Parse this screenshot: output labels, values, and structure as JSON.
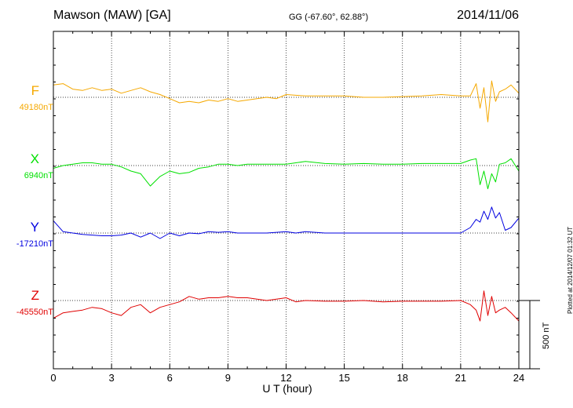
{
  "header": {
    "title": "Mawson (MAW)  [GA]",
    "coords": "GG (-67.60°,  62.88°)",
    "date": "2014/11/06"
  },
  "footer": {
    "plotted": "Plotted at 2014/12/07 01:32 UT",
    "scale": "500 nT"
  },
  "chart_data": {
    "type": "line",
    "xlabel": "U T (hour)",
    "xlim": [
      0,
      24
    ],
    "xticks": [
      0,
      3,
      6,
      9,
      12,
      15,
      18,
      21,
      24
    ],
    "xtick_labels": [
      "0",
      "3",
      "6",
      "9",
      "12",
      "15",
      "18",
      "21",
      "24"
    ],
    "grid": true,
    "scale_bar_nT": 500,
    "series": [
      {
        "name": "F",
        "baseline_label": "49180nT",
        "baseline": 49180,
        "color": "#f5a800",
        "x": [
          0,
          0.5,
          1,
          1.5,
          2,
          2.5,
          3,
          3.5,
          4,
          4.5,
          5,
          5.5,
          6,
          6.5,
          7,
          7.5,
          8,
          8.5,
          9,
          9.5,
          10,
          10.5,
          11,
          11.5,
          12,
          13,
          14,
          15,
          16,
          17,
          18,
          19,
          20,
          21,
          21.5,
          21.8,
          22,
          22.2,
          22.4,
          22.6,
          22.8,
          23,
          23.3,
          23.6,
          24
        ],
        "y": [
          49270,
          49280,
          49240,
          49230,
          49250,
          49230,
          49240,
          49210,
          49230,
          49250,
          49220,
          49200,
          49170,
          49140,
          49150,
          49140,
          49160,
          49150,
          49170,
          49150,
          49160,
          49170,
          49180,
          49170,
          49200,
          49190,
          49190,
          49190,
          49180,
          49180,
          49185,
          49190,
          49200,
          49190,
          49190,
          49280,
          49100,
          49250,
          49000,
          49300,
          49150,
          49220,
          49240,
          49270,
          49210
        ]
      },
      {
        "name": "X",
        "baseline_label": "6940nT",
        "baseline": 6940,
        "color": "#00e000",
        "x": [
          0,
          0.5,
          1,
          1.5,
          2,
          2.5,
          3,
          3.5,
          4,
          4.5,
          5,
          5.5,
          6,
          6.5,
          7,
          7.5,
          8,
          8.5,
          9,
          9.5,
          10,
          11,
          12,
          12.5,
          13,
          14,
          15,
          16,
          17,
          18,
          19,
          20,
          21,
          21.5,
          21.8,
          22,
          22.2,
          22.4,
          22.6,
          22.8,
          23,
          23.3,
          23.6,
          24
        ],
        "y": [
          6920,
          6940,
          6950,
          6960,
          6960,
          6950,
          6950,
          6930,
          6900,
          6880,
          6790,
          6860,
          6900,
          6880,
          6890,
          6920,
          6930,
          6950,
          6950,
          6940,
          6950,
          6950,
          6950,
          6960,
          6970,
          6955,
          6950,
          6955,
          6950,
          6950,
          6955,
          6955,
          6955,
          6980,
          6990,
          6800,
          6900,
          6770,
          6880,
          6820,
          6950,
          6960,
          6990,
          6900
        ]
      },
      {
        "name": "Y",
        "baseline_label": "-17210nT",
        "baseline": -17210,
        "color": "#0000e0",
        "x": [
          0,
          0.5,
          1,
          1.5,
          2,
          2.5,
          3,
          3.5,
          4,
          4.5,
          5,
          5.5,
          6,
          6.5,
          7,
          7.5,
          8,
          8.5,
          9,
          9.5,
          10,
          11,
          12,
          12.5,
          13,
          14,
          15,
          16,
          17,
          18,
          19,
          20,
          21,
          21.5,
          21.8,
          22,
          22.2,
          22.4,
          22.6,
          22.8,
          23,
          23.3,
          23.6,
          24
        ],
        "y": [
          -17120,
          -17200,
          -17210,
          -17220,
          -17225,
          -17230,
          -17230,
          -17225,
          -17210,
          -17240,
          -17210,
          -17250,
          -17210,
          -17230,
          -17210,
          -17215,
          -17200,
          -17205,
          -17200,
          -17210,
          -17210,
          -17210,
          -17200,
          -17210,
          -17200,
          -17210,
          -17210,
          -17210,
          -17210,
          -17210,
          -17210,
          -17210,
          -17210,
          -17170,
          -17110,
          -17130,
          -17050,
          -17110,
          -17020,
          -17100,
          -17060,
          -17190,
          -17170,
          -17100
        ]
      },
      {
        "name": "Z",
        "baseline_label": "-45550nT",
        "baseline": -45550,
        "color": "#e00000",
        "x": [
          0,
          0.5,
          1,
          1.5,
          2,
          2.5,
          3,
          3.5,
          4,
          4.5,
          5,
          5.5,
          6,
          6.5,
          7,
          7.5,
          8,
          8.5,
          9,
          9.5,
          10,
          11,
          12,
          12.5,
          13,
          14,
          15,
          16,
          17,
          18,
          19,
          20,
          21,
          21.5,
          21.8,
          22,
          22.2,
          22.4,
          22.6,
          22.8,
          23,
          23.3,
          23.6,
          24
        ],
        "y": [
          -45680,
          -45640,
          -45630,
          -45620,
          -45600,
          -45610,
          -45640,
          -45660,
          -45600,
          -45580,
          -45640,
          -45600,
          -45580,
          -45560,
          -45520,
          -45540,
          -45530,
          -45530,
          -45520,
          -45530,
          -45530,
          -45550,
          -45530,
          -45560,
          -45550,
          -45555,
          -45555,
          -45550,
          -45560,
          -45555,
          -45555,
          -45555,
          -45550,
          -45580,
          -45620,
          -45700,
          -45480,
          -45660,
          -45520,
          -45640,
          -45620,
          -45600,
          -45640,
          -45700
        ]
      }
    ]
  }
}
